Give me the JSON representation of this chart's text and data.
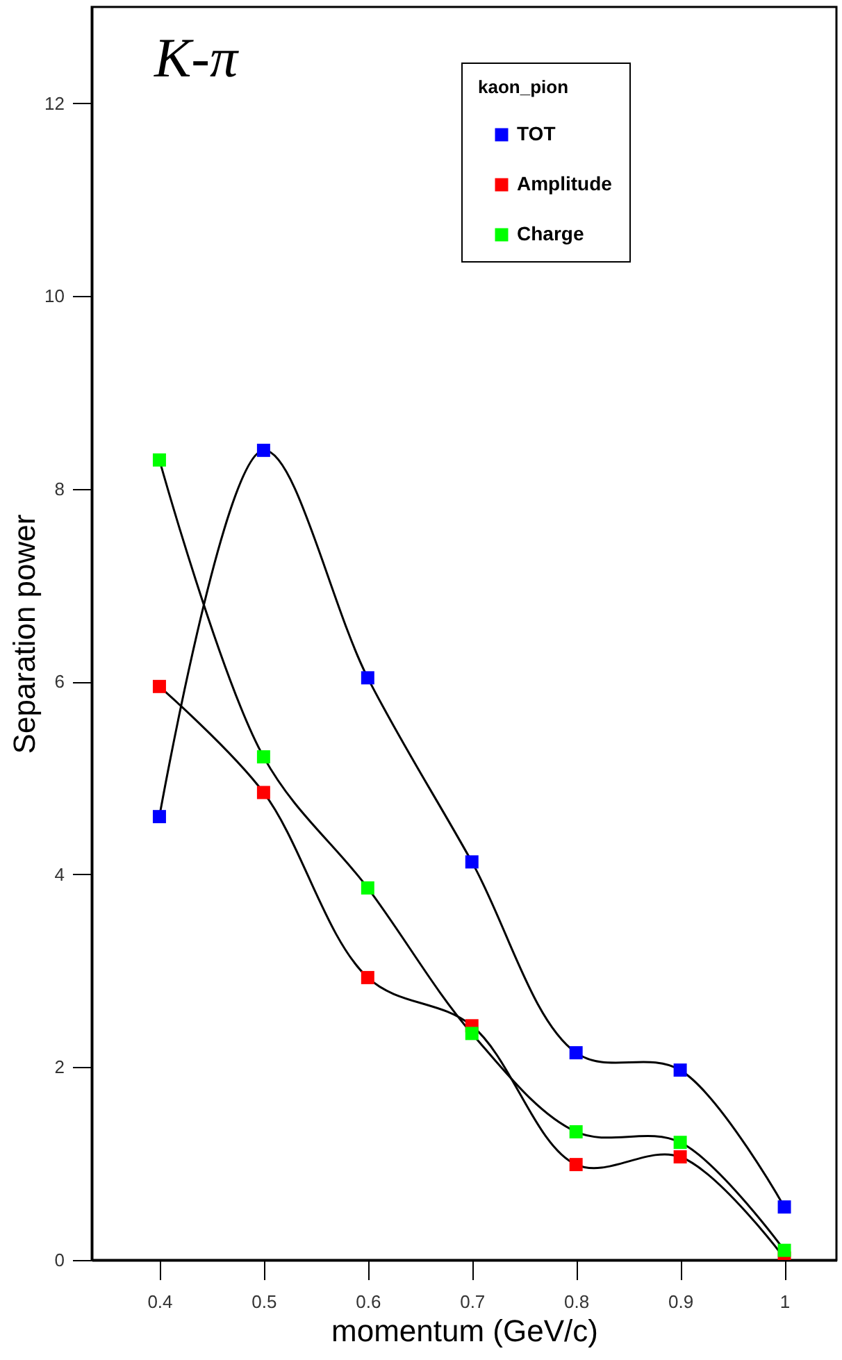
{
  "chart_data": {
    "type": "line",
    "xlabel": "momentum (GeV/c)",
    "ylabel": "Separation power",
    "legend_title": "kaon_pion",
    "annotations": [
      "K-π"
    ],
    "x": [
      0.4,
      0.5,
      0.6,
      0.7,
      0.8,
      0.9,
      1
    ],
    "series": [
      {
        "name": "TOT",
        "color": "#0000ff",
        "values": [
          4.6,
          8.4,
          6.04,
          4.13,
          2.15,
          1.97,
          0.55
        ]
      },
      {
        "name": "Amplitude",
        "color": "#ff0000",
        "values": [
          5.95,
          4.85,
          2.93,
          2.43,
          0.99,
          1.07,
          0.02
        ]
      },
      {
        "name": "Charge",
        "color": "#00ff00",
        "values": [
          8.3,
          5.22,
          3.86,
          2.35,
          1.33,
          1.22,
          0.1
        ]
      }
    ],
    "xlim": [
      0.335,
      1.05
    ],
    "xticks": [
      0.4,
      0.5,
      0.6,
      0.7,
      0.8,
      0.9,
      1
    ],
    "ylim": [
      0,
      13
    ],
    "yticks": [
      0,
      2,
      4,
      6,
      8,
      10,
      12
    ],
    "marker": "square",
    "line_style": "solid",
    "legend": "top right",
    "grid": false
  }
}
